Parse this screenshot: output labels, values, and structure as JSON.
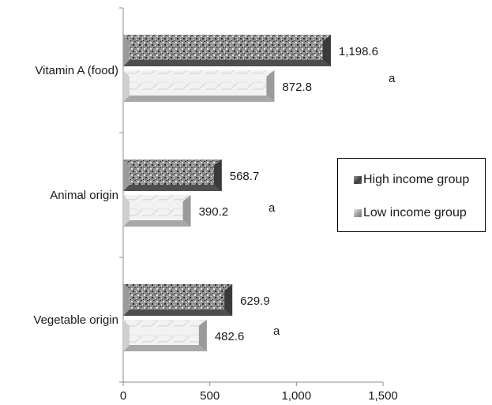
{
  "chart_data": {
    "type": "bar",
    "orientation": "horizontal",
    "categories": [
      "Vitamin A (food)",
      "Animal origin",
      "Vegetable origin"
    ],
    "series": [
      {
        "name": "High income group",
        "values": [
          1198.6,
          568.7,
          629.9
        ],
        "labels": [
          "1,198.6",
          "568.7",
          "629.9"
        ]
      },
      {
        "name": "Low income group",
        "values": [
          872.8,
          390.2,
          482.6
        ],
        "labels": [
          "872.8",
          "390.2",
          "482.6"
        ]
      }
    ],
    "annotations": [
      "a",
      "a",
      "a"
    ],
    "xlim": [
      0,
      1500
    ],
    "x_ticks": [
      {
        "value": 0,
        "label": "0"
      },
      {
        "value": 500,
        "label": "500"
      },
      {
        "value": 1000,
        "label": "1,000"
      },
      {
        "value": 1500,
        "label": "1,500"
      }
    ],
    "legend_position": "right",
    "grid": false,
    "colors": {
      "high": "#4a4a4a",
      "low": "#c8c8c8"
    }
  }
}
